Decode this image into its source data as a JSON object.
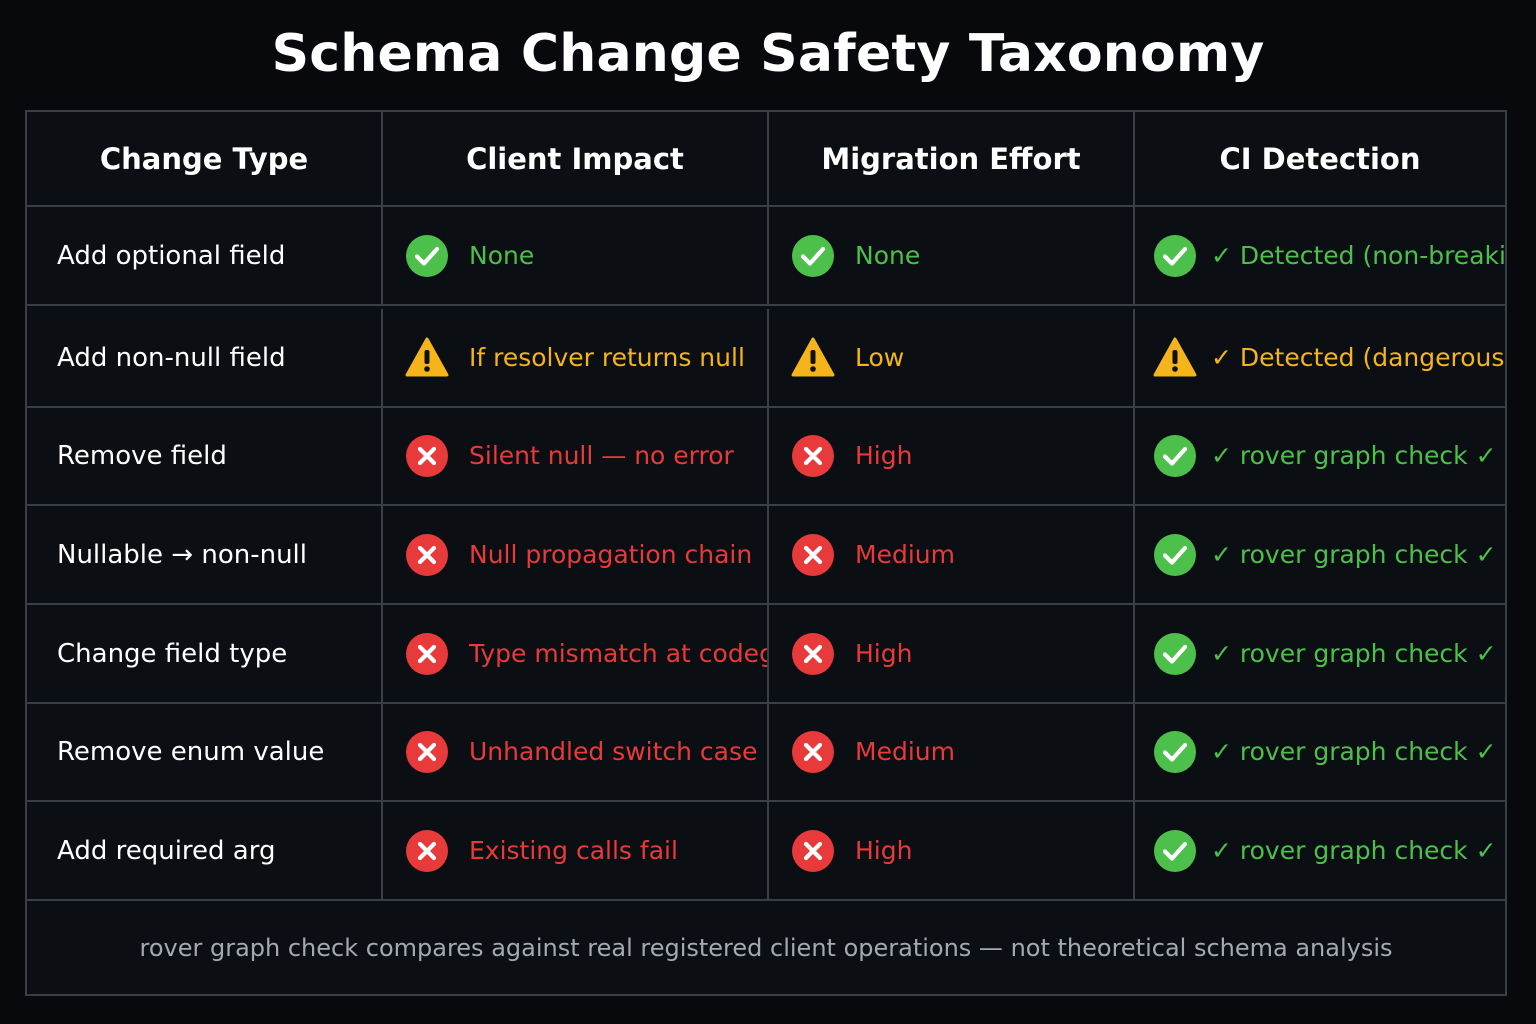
{
  "title": "Schema Change Safety Taxonomy",
  "colors": {
    "green": "#4cc04a",
    "amber": "#f4b41a",
    "red": "#e83a3a"
  },
  "columns": [
    "Change Type",
    "Client Impact",
    "Migration Effort",
    "CI Detection"
  ],
  "rows": [
    {
      "change_type": "Add optional field",
      "client_impact": {
        "icon": "check-circle-icon",
        "status": "green",
        "text": "None"
      },
      "migration_effort": {
        "icon": "check-circle-icon",
        "status": "green",
        "text": "None"
      },
      "ci_detection": {
        "icon": "check-circle-icon",
        "status": "green",
        "text": "✓ Detected (non-breaking)"
      }
    },
    {
      "change_type": "Add non-null field",
      "client_impact": {
        "icon": "warning-triangle-icon",
        "status": "amber",
        "text": "If resolver returns null"
      },
      "migration_effort": {
        "icon": "warning-triangle-icon",
        "status": "amber",
        "text": "Low"
      },
      "ci_detection": {
        "icon": "warning-triangle-icon",
        "status": "amber",
        "text": "✓ Detected (dangerous)"
      }
    },
    {
      "change_type": "Remove field",
      "client_impact": {
        "icon": "x-circle-icon",
        "status": "red",
        "text": "Silent null — no error"
      },
      "migration_effort": {
        "icon": "x-circle-icon",
        "status": "red",
        "text": "High"
      },
      "ci_detection": {
        "icon": "check-circle-icon",
        "status": "green",
        "text": "✓ rover graph check ✓"
      }
    },
    {
      "change_type": "Nullable → non-null",
      "client_impact": {
        "icon": "x-circle-icon",
        "status": "red",
        "text": "Null propagation chain"
      },
      "migration_effort": {
        "icon": "x-circle-icon",
        "status": "red",
        "text": "Medium"
      },
      "ci_detection": {
        "icon": "check-circle-icon",
        "status": "green",
        "text": "✓ rover graph check ✓"
      }
    },
    {
      "change_type": "Change field type",
      "client_impact": {
        "icon": "x-circle-icon",
        "status": "red",
        "text": "Type mismatch at codegen"
      },
      "migration_effort": {
        "icon": "x-circle-icon",
        "status": "red",
        "text": "High"
      },
      "ci_detection": {
        "icon": "check-circle-icon",
        "status": "green",
        "text": "✓ rover graph check ✓"
      }
    },
    {
      "change_type": "Remove enum value",
      "client_impact": {
        "icon": "x-circle-icon",
        "status": "red",
        "text": "Unhandled switch case"
      },
      "migration_effort": {
        "icon": "x-circle-icon",
        "status": "red",
        "text": "Medium"
      },
      "ci_detection": {
        "icon": "check-circle-icon",
        "status": "green",
        "text": "✓ rover graph check ✓"
      }
    },
    {
      "change_type": "Add required arg",
      "client_impact": {
        "icon": "x-circle-icon",
        "status": "red",
        "text": "Existing calls fail"
      },
      "migration_effort": {
        "icon": "x-circle-icon",
        "status": "red",
        "text": "High"
      },
      "ci_detection": {
        "icon": "check-circle-icon",
        "status": "green",
        "text": "✓ rover graph check ✓"
      }
    }
  ],
  "footer_note": "rover graph check compares against real registered client operations — not theoretical schema analysis"
}
